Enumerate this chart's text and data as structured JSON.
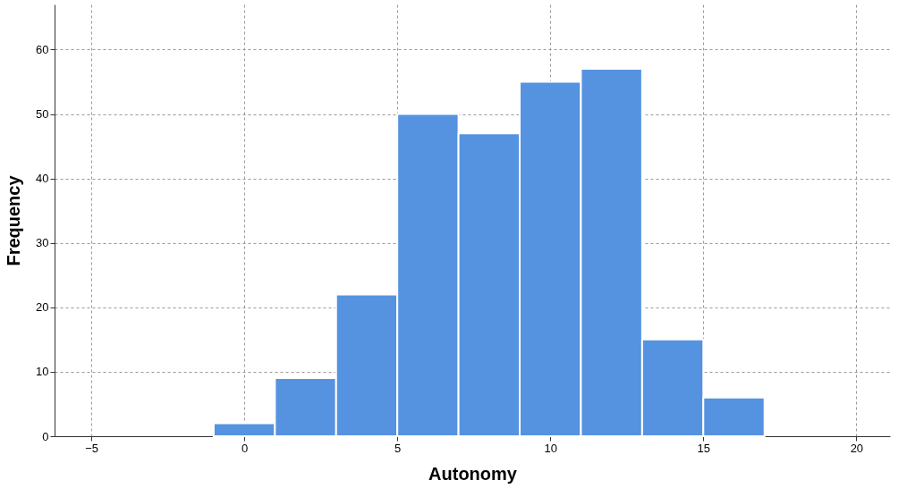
{
  "chart_data": {
    "type": "histogram",
    "xlabel": "Autonomy",
    "ylabel": "Frequency",
    "bins": [
      -1,
      1,
      3,
      5,
      7,
      9,
      11,
      13,
      15,
      17
    ],
    "values": [
      2,
      9,
      22,
      50,
      47,
      55,
      57,
      15,
      6
    ],
    "color": "#5592e0",
    "xlim": [
      -6.2,
      21.1
    ],
    "xticks": [
      -5,
      0,
      5,
      10,
      15,
      20
    ],
    "ylim": [
      0,
      67
    ],
    "yticks": [
      0,
      10,
      20,
      30,
      40,
      50,
      60
    ],
    "grid": true
  }
}
